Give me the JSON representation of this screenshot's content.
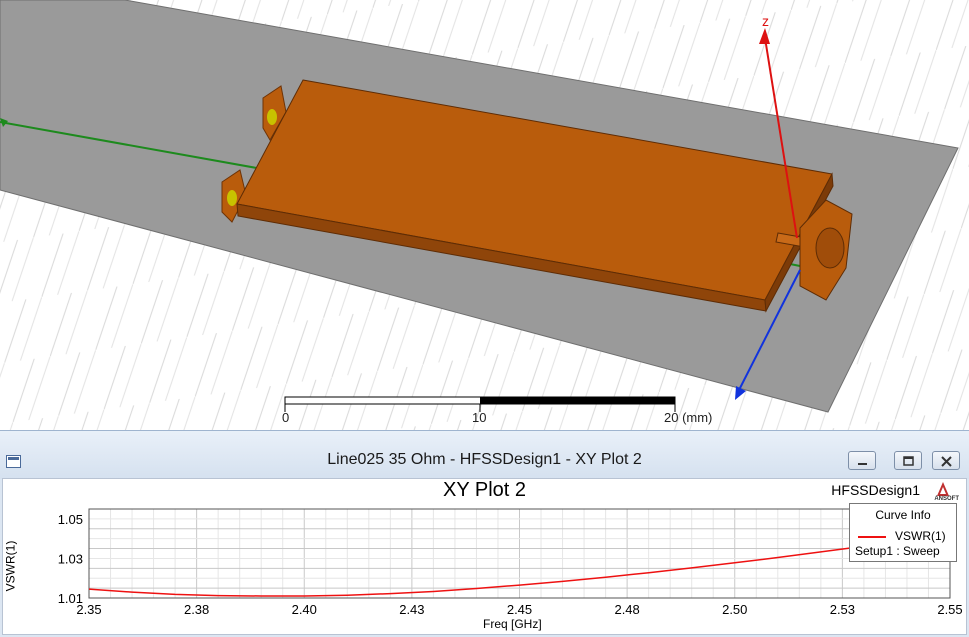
{
  "viewport": {
    "axis_label_z": "z",
    "ruler": {
      "labels": [
        "0",
        "10",
        "20 (mm)"
      ]
    }
  },
  "window": {
    "title": "Line025 35 Ohm - HFSSDesign1 - XY Plot 2",
    "buttons": [
      "minimize",
      "restore",
      "close"
    ]
  },
  "plot": {
    "design_name": "HFSSDesign1",
    "logo_text": "ANSOFT",
    "legend": {
      "title": "Curve Info",
      "name": "VSWR(1)",
      "subtitle": "Setup1 : Sweep"
    }
  },
  "colors": {
    "curve": "#ee1111",
    "board": "#b95c0c",
    "ground": "#9a9a9a"
  },
  "chart_data": {
    "type": "line",
    "title": "XY Plot 2",
    "xlabel": "Freq [GHz]",
    "ylabel": "VSWR(1)",
    "xlim": [
      2.35,
      2.55
    ],
    "ylim": [
      1.01,
      1.055
    ],
    "xticks": [
      "2.35",
      "2.38",
      "2.40",
      "2.43",
      "2.45",
      "2.48",
      "2.50",
      "2.53",
      "2.55"
    ],
    "yticks": [
      "1.01",
      "1.03",
      "1.05"
    ],
    "grid": true,
    "legend_position": "top-right",
    "series": [
      {
        "name": "VSWR(1)",
        "x": [
          2.35,
          2.36,
          2.37,
          2.38,
          2.39,
          2.4,
          2.41,
          2.42,
          2.43,
          2.44,
          2.45,
          2.46,
          2.47,
          2.48,
          2.49,
          2.5,
          2.51,
          2.52,
          2.53,
          2.54,
          2.55
        ],
        "y": [
          1.0145,
          1.013,
          1.0118,
          1.0112,
          1.011,
          1.011,
          1.0114,
          1.0122,
          1.0133,
          1.0148,
          1.0165,
          1.0184,
          1.0205,
          1.0228,
          1.0252,
          1.0278,
          1.0305,
          1.0333,
          1.0362,
          1.0392,
          1.0423
        ]
      }
    ]
  }
}
